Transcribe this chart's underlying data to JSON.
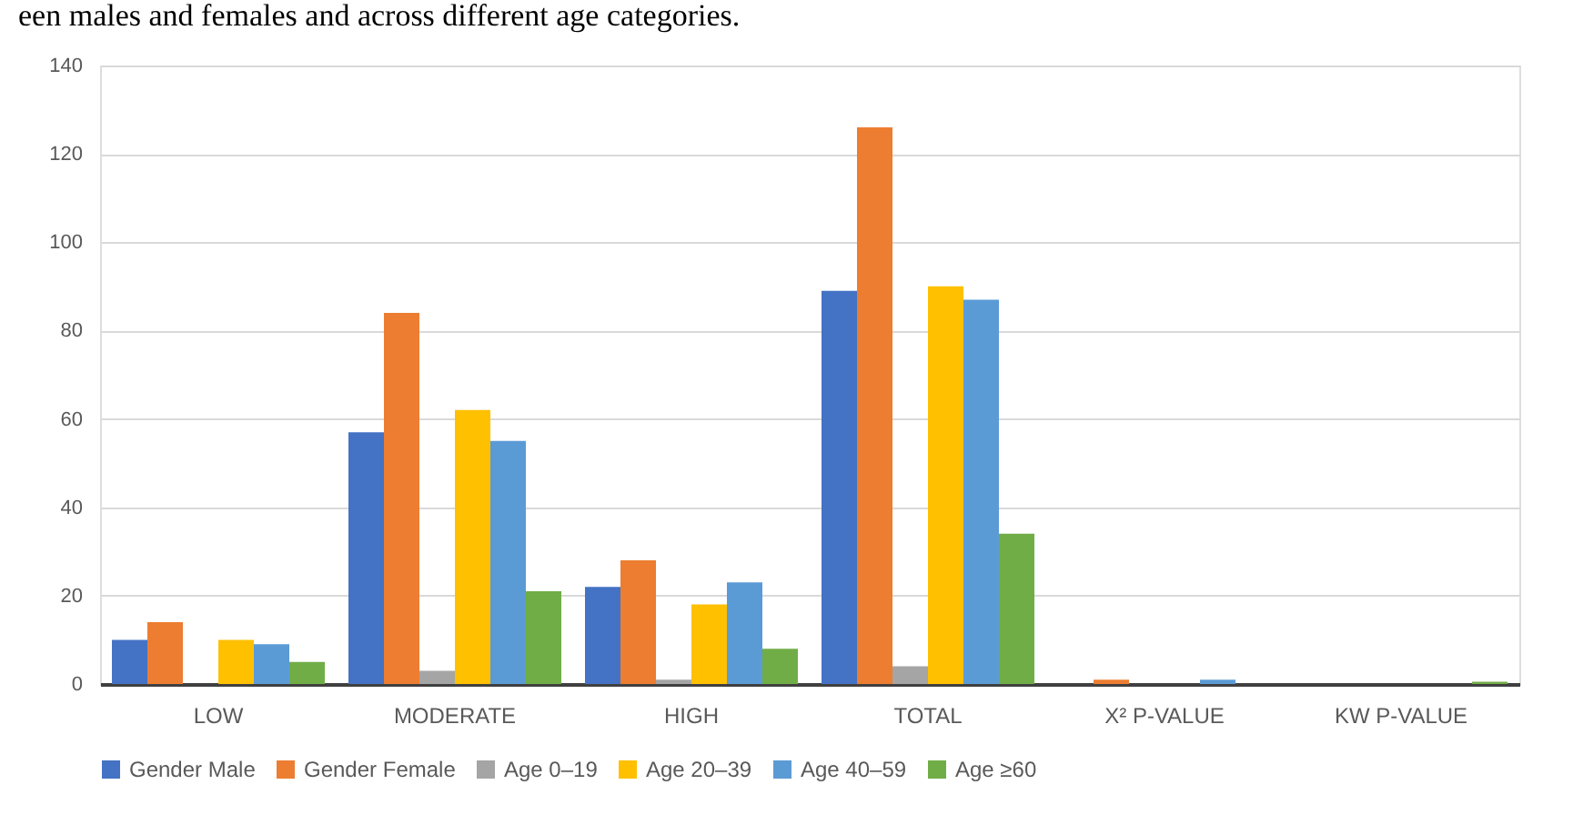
{
  "chart_data": {
    "type": "bar",
    "annotations": [
      "een males and females and across different age categories."
    ],
    "categories": [
      "LOW",
      "MODERATE",
      "HIGH",
      "TOTAL",
      "X² P-VALUE",
      "KW P-VALUE"
    ],
    "series": [
      {
        "name": "Gender Male",
        "color": "#4472c4",
        "values": [
          10,
          57,
          22,
          89,
          0,
          0
        ]
      },
      {
        "name": "Gender Female",
        "color": "#ed7d31",
        "values": [
          14,
          84,
          28,
          126,
          1,
          0
        ]
      },
      {
        "name": "Age 0–19",
        "color": "#a5a5a5",
        "values": [
          0,
          3,
          1,
          4,
          0,
          0
        ]
      },
      {
        "name": "Age 20–39",
        "color": "#ffc000",
        "values": [
          10,
          62,
          18,
          90,
          0,
          0
        ]
      },
      {
        "name": "Age 40–59",
        "color": "#5b9bd5",
        "values": [
          9,
          55,
          23,
          87,
          1,
          0
        ]
      },
      {
        "name": "Age ≥60",
        "color": "#70ad47",
        "values": [
          5,
          21,
          8,
          34,
          0,
          0.5
        ]
      }
    ],
    "ylim": [
      0,
      140
    ],
    "yticks": [
      0,
      20,
      40,
      60,
      80,
      100,
      120,
      140
    ],
    "grid": "y",
    "legend": "bottom"
  }
}
